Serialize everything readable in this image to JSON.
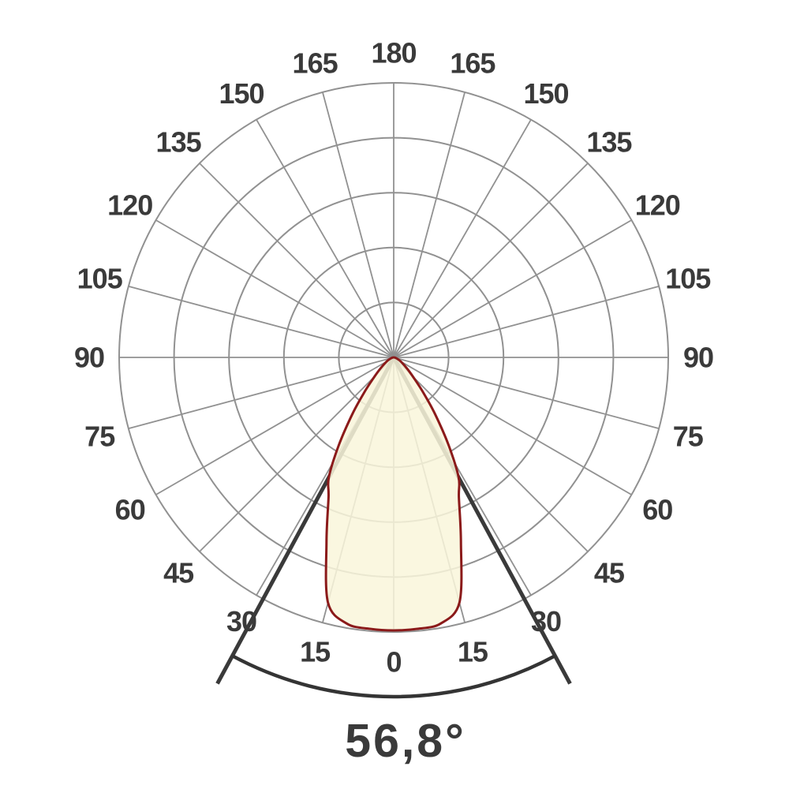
{
  "page": {
    "background": "#ffffff"
  },
  "chart_data": {
    "type": "line",
    "projection": "polar",
    "description": "Photometric luminous intensity distribution curve (beam pointing downward)",
    "beam_angle": {
      "label": "56,8°",
      "full_angle_deg": 56.8,
      "half_angle_deg": 28.4,
      "defined_at_relative_intensity": 0.5
    },
    "angle_axis": {
      "unit": "deg",
      "zero_direction": "down",
      "tick_step_deg": 15,
      "tick_labels": [
        "0",
        "15",
        "30",
        "45",
        "60",
        "75",
        "90",
        "105",
        "120",
        "135",
        "150",
        "165",
        "180"
      ],
      "labels_mirrored_both_sides": true
    },
    "radial_axis": {
      "rings": 5,
      "ring_values_relative": [
        0.2,
        0.4,
        0.6,
        0.8,
        1.0
      ],
      "max_relative": 1.0,
      "ring_labels_shown": false,
      "grid": "on"
    },
    "series": [
      {
        "name": "relative luminous intensity",
        "angles_deg": [
          -90,
          -80,
          -70,
          -60,
          -50,
          -45,
          -40,
          -36,
          -32,
          -28.4,
          -25,
          -20,
          -15,
          -10,
          -5,
          0,
          5,
          10,
          15,
          20,
          25,
          28.4,
          32,
          36,
          40,
          45,
          50,
          60,
          70,
          80,
          90
        ],
        "relative_intensity": [
          0,
          0.004,
          0.012,
          0.03,
          0.065,
          0.1,
          0.17,
          0.26,
          0.38,
          0.5,
          0.565,
          0.72,
          0.93,
          0.99,
          0.998,
          1.0,
          0.998,
          0.99,
          0.93,
          0.72,
          0.565,
          0.5,
          0.38,
          0.26,
          0.17,
          0.1,
          0.065,
          0.03,
          0.012,
          0.004,
          0
        ]
      }
    ],
    "legend": "none",
    "colors": {
      "curve_stroke": "#8b1a1a",
      "curve_fill": "#f9f6db",
      "grid": "#919191",
      "beam_lines": "#3a3a3a",
      "beam_arc": "#343434",
      "labels": "#3a3a3a",
      "background": "#ffffff"
    }
  }
}
